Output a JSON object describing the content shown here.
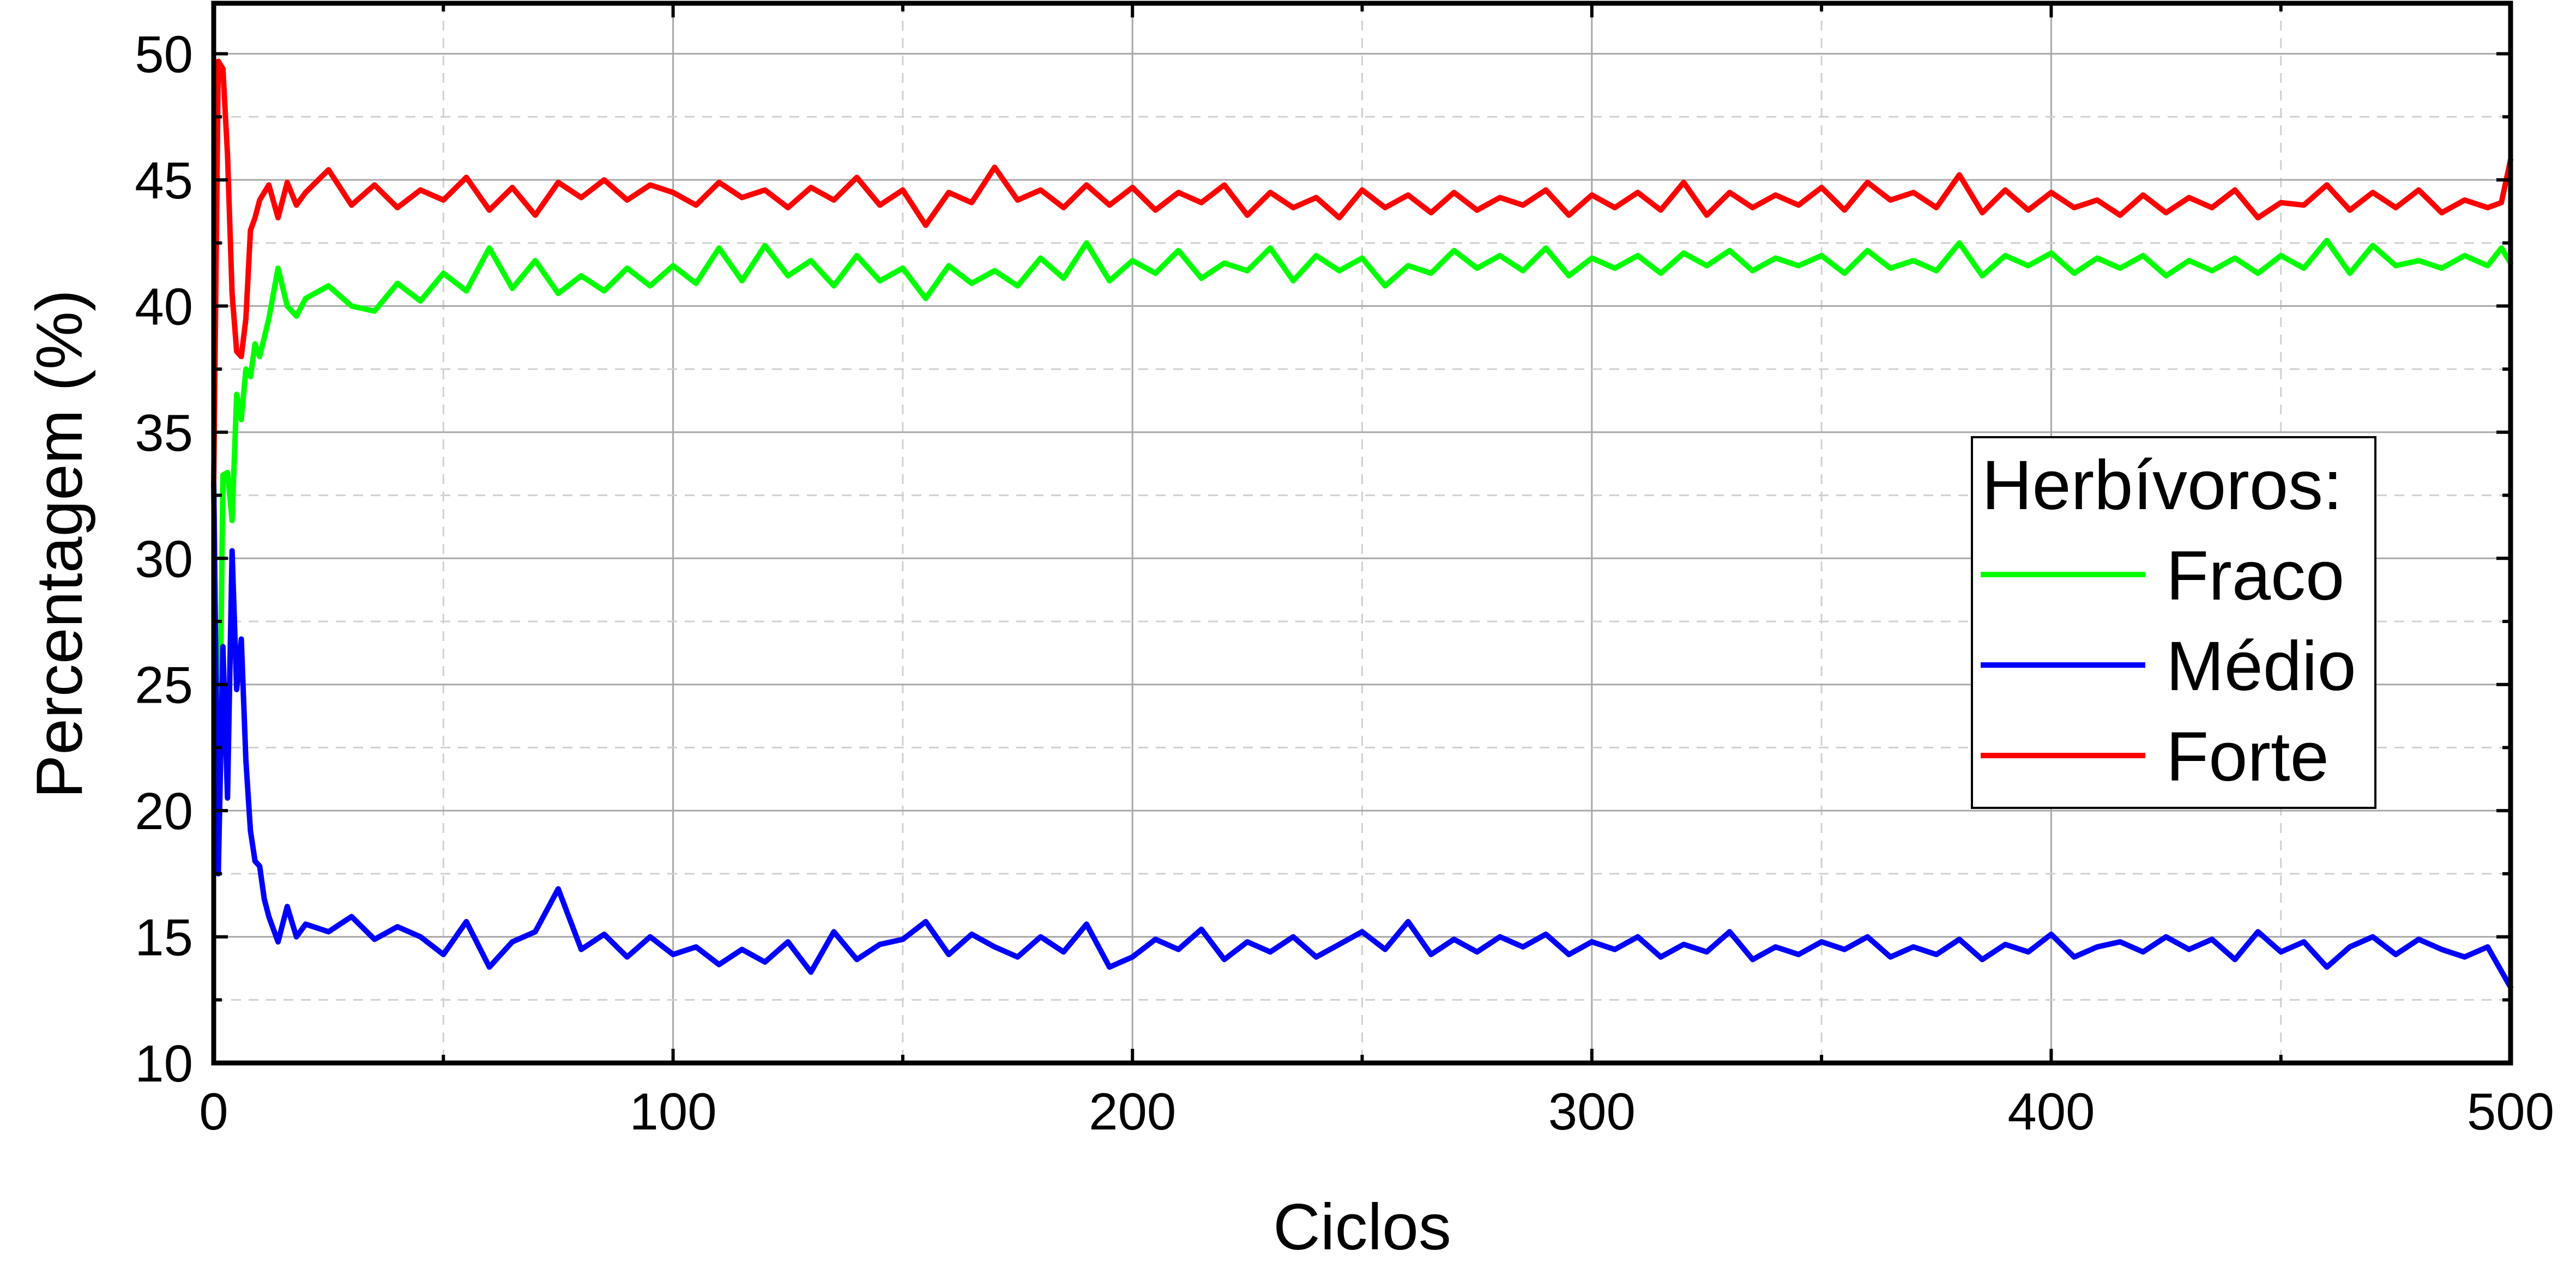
{
  "chart_data": {
    "type": "line",
    "title": "",
    "xlabel": "Ciclos",
    "ylabel": "Percentagem (%)",
    "xlim": [
      0,
      500
    ],
    "ylim": [
      10,
      52
    ],
    "xticks": [
      0,
      100,
      200,
      300,
      400,
      500
    ],
    "yticks": [
      10,
      15,
      20,
      25,
      30,
      35,
      40,
      45,
      50
    ],
    "grid": true,
    "legend": {
      "title": "Herbívoros:",
      "placement": "right-middle"
    },
    "series": [
      {
        "name": "Fraco",
        "color": "#00ff00",
        "x": [
          0,
          1,
          2,
          3,
          4,
          5,
          6,
          7,
          8,
          9,
          10,
          12,
          14,
          16,
          18,
          20,
          25,
          30,
          35,
          40,
          45,
          50,
          55,
          60,
          65,
          70,
          75,
          80,
          85,
          90,
          95,
          100,
          105,
          110,
          115,
          120,
          125,
          130,
          135,
          140,
          145,
          150,
          155,
          160,
          165,
          170,
          175,
          180,
          185,
          190,
          195,
          200,
          205,
          210,
          215,
          220,
          225,
          230,
          235,
          240,
          245,
          250,
          255,
          260,
          265,
          270,
          275,
          280,
          285,
          290,
          295,
          300,
          305,
          310,
          315,
          320,
          325,
          330,
          335,
          340,
          345,
          350,
          355,
          360,
          365,
          370,
          375,
          380,
          385,
          390,
          395,
          400,
          405,
          410,
          415,
          420,
          425,
          430,
          435,
          440,
          445,
          450,
          455,
          460,
          465,
          470,
          475,
          480,
          485,
          490,
          495,
          498,
          500
        ],
        "y": [
          33,
          17.5,
          33.3,
          33.4,
          31.5,
          36.5,
          35.5,
          37.5,
          37.2,
          38.5,
          38.0,
          39.5,
          41.5,
          40.0,
          39.6,
          40.3,
          40.8,
          40.0,
          39.8,
          40.9,
          40.2,
          41.3,
          40.6,
          42.3,
          40.7,
          41.8,
          40.5,
          41.2,
          40.6,
          41.5,
          40.8,
          41.6,
          40.9,
          42.3,
          41.0,
          42.4,
          41.2,
          41.8,
          40.8,
          42.0,
          41.0,
          41.5,
          40.3,
          41.6,
          40.9,
          41.4,
          40.8,
          41.9,
          41.1,
          42.5,
          41.0,
          41.8,
          41.3,
          42.2,
          41.1,
          41.7,
          41.4,
          42.3,
          41.0,
          42.0,
          41.4,
          41.9,
          40.8,
          41.6,
          41.3,
          42.2,
          41.5,
          42.0,
          41.4,
          42.3,
          41.2,
          41.9,
          41.5,
          42.0,
          41.3,
          42.1,
          41.6,
          42.2,
          41.4,
          41.9,
          41.6,
          42.0,
          41.3,
          42.2,
          41.5,
          41.8,
          41.4,
          42.5,
          41.2,
          42.0,
          41.6,
          42.1,
          41.3,
          41.9,
          41.5,
          42.0,
          41.2,
          41.8,
          41.4,
          41.9,
          41.3,
          42.0,
          41.5,
          42.6,
          41.3,
          42.4,
          41.6,
          41.8,
          41.5,
          42.0,
          41.6,
          42.3,
          41.7
        ]
      },
      {
        "name": "Médio",
        "color": "#0000ff",
        "x": [
          0,
          1,
          2,
          3,
          4,
          5,
          6,
          7,
          8,
          9,
          10,
          11,
          12,
          14,
          16,
          18,
          20,
          25,
          30,
          35,
          40,
          45,
          50,
          55,
          60,
          65,
          70,
          75,
          80,
          85,
          90,
          95,
          100,
          105,
          110,
          115,
          120,
          125,
          130,
          135,
          140,
          145,
          150,
          155,
          160,
          165,
          170,
          175,
          180,
          185,
          190,
          195,
          200,
          205,
          210,
          215,
          220,
          225,
          230,
          235,
          240,
          245,
          250,
          255,
          260,
          265,
          270,
          275,
          280,
          285,
          290,
          295,
          300,
          305,
          310,
          315,
          320,
          325,
          330,
          335,
          340,
          345,
          350,
          355,
          360,
          365,
          370,
          375,
          380,
          385,
          390,
          395,
          400,
          405,
          410,
          415,
          420,
          425,
          430,
          435,
          440,
          445,
          450,
          455,
          460,
          465,
          470,
          475,
          480,
          485,
          490,
          495,
          500
        ],
        "y": [
          33,
          17.5,
          26.5,
          20.5,
          30.3,
          24.8,
          26.8,
          22.0,
          19.2,
          18.0,
          17.8,
          16.5,
          15.8,
          14.8,
          16.2,
          15.0,
          15.5,
          15.2,
          15.8,
          14.9,
          15.4,
          15.0,
          14.3,
          15.6,
          13.8,
          14.8,
          15.2,
          16.9,
          14.5,
          15.1,
          14.2,
          15.0,
          14.3,
          14.6,
          13.9,
          14.5,
          14.0,
          14.8,
          13.6,
          15.2,
          14.1,
          14.7,
          14.9,
          15.6,
          14.3,
          15.1,
          14.6,
          14.2,
          15.0,
          14.4,
          15.5,
          13.8,
          14.2,
          14.9,
          14.5,
          15.3,
          14.1,
          14.8,
          14.4,
          15.0,
          14.2,
          14.7,
          15.2,
          14.5,
          15.6,
          14.3,
          14.9,
          14.4,
          15.0,
          14.6,
          15.1,
          14.3,
          14.8,
          14.5,
          15.0,
          14.2,
          14.7,
          14.4,
          15.2,
          14.1,
          14.6,
          14.3,
          14.8,
          14.5,
          15.0,
          14.2,
          14.6,
          14.3,
          14.9,
          14.1,
          14.7,
          14.4,
          15.1,
          14.2,
          14.6,
          14.8,
          14.4,
          15.0,
          14.5,
          14.9,
          14.1,
          15.2,
          14.4,
          14.8,
          13.8,
          14.6,
          15.0,
          14.3,
          14.9,
          14.5,
          14.2,
          14.6,
          13.0
        ]
      },
      {
        "name": "Forte",
        "color": "#ff0000",
        "x": [
          0,
          1,
          2,
          3,
          4,
          5,
          6,
          7,
          8,
          9,
          10,
          12,
          14,
          16,
          18,
          20,
          25,
          30,
          35,
          40,
          45,
          50,
          55,
          60,
          65,
          70,
          75,
          80,
          85,
          90,
          95,
          100,
          105,
          110,
          115,
          120,
          125,
          130,
          135,
          140,
          145,
          150,
          155,
          160,
          165,
          170,
          175,
          180,
          185,
          190,
          195,
          200,
          205,
          210,
          215,
          220,
          225,
          230,
          235,
          240,
          245,
          250,
          255,
          260,
          265,
          270,
          275,
          280,
          285,
          290,
          295,
          300,
          305,
          310,
          315,
          320,
          325,
          330,
          335,
          340,
          345,
          350,
          355,
          360,
          365,
          370,
          375,
          380,
          385,
          390,
          395,
          400,
          405,
          410,
          415,
          420,
          425,
          430,
          435,
          440,
          445,
          450,
          455,
          460,
          465,
          470,
          475,
          480,
          485,
          490,
          495,
          498,
          500
        ],
        "y": [
          33,
          49.7,
          49.4,
          46.0,
          40.5,
          38.2,
          38.0,
          39.5,
          43.0,
          43.5,
          44.2,
          44.8,
          43.5,
          44.9,
          44.0,
          44.5,
          45.4,
          44.0,
          44.8,
          43.9,
          44.6,
          44.2,
          45.1,
          43.8,
          44.7,
          43.6,
          44.9,
          44.3,
          45.0,
          44.2,
          44.8,
          44.5,
          44.0,
          44.9,
          44.3,
          44.6,
          43.9,
          44.7,
          44.2,
          45.1,
          44.0,
          44.6,
          43.2,
          44.5,
          44.1,
          45.5,
          44.2,
          44.6,
          43.9,
          44.8,
          44.0,
          44.7,
          43.8,
          44.5,
          44.1,
          44.8,
          43.6,
          44.5,
          43.9,
          44.3,
          43.5,
          44.6,
          43.9,
          44.4,
          43.7,
          44.5,
          43.8,
          44.3,
          44.0,
          44.6,
          43.6,
          44.4,
          43.9,
          44.5,
          43.8,
          44.9,
          43.6,
          44.5,
          43.9,
          44.4,
          44.0,
          44.7,
          43.8,
          44.9,
          44.2,
          44.5,
          43.9,
          45.2,
          43.7,
          44.6,
          43.8,
          44.5,
          43.9,
          44.2,
          43.6,
          44.4,
          43.7,
          44.3,
          43.9,
          44.6,
          43.5,
          44.1,
          44.0,
          44.8,
          43.8,
          44.5,
          43.9,
          44.6,
          43.7,
          44.2,
          43.9,
          44.1,
          45.8
        ]
      }
    ]
  }
}
